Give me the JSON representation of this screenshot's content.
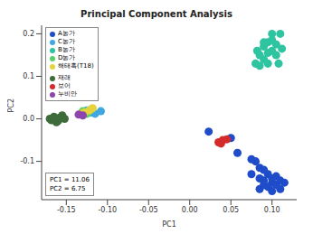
{
  "chart_data": {
    "type": "scatter",
    "title": "Principal Component Analysis",
    "x_label": "PC1",
    "y_label": "PC2",
    "xlim": [
      -0.18,
      0.13
    ],
    "xticks": [
      {
        "value": -0.15,
        "label": "-0.15"
      },
      {
        "value": -0.1,
        "label": "-0.10"
      },
      {
        "value": -0.05,
        "label": "-0.05"
      },
      {
        "value": 0,
        "label": "0.00"
      },
      {
        "value": 0.05,
        "label": "0.05"
      },
      {
        "value": 0.1,
        "label": "0.10"
      }
    ],
    "ylim": [
      -0.19,
      0.22
    ],
    "yticks": [
      {
        "value": -0.1,
        "label": "-0.1"
      },
      {
        "value": 0,
        "label": "0.0"
      },
      {
        "value": 0.1,
        "label": "0.1"
      },
      {
        "value": 0.2,
        "label": "0.2"
      }
    ],
    "grid": false,
    "legend": "top-left",
    "marker": "circle",
    "annotations": [
      "PC1 = 11.06",
      "PC2 = 6.75"
    ],
    "series": [
      {
        "name": "A농가",
        "color": "#1f4cc9",
        "x": [
          0.08,
          0.085,
          0.09,
          0.095,
          0.085,
          0.09,
          0.1,
          0.105,
          0.095,
          0.11,
          0.1,
          0.085,
          0.105,
          0.11,
          0.09,
          0.075,
          0.115,
          0.1,
          0.023,
          0.05,
          0.058,
          0.075
        ],
        "values": [
          -0.1,
          -0.115,
          -0.12,
          -0.13,
          -0.14,
          -0.145,
          -0.15,
          -0.155,
          -0.16,
          -0.165,
          -0.17,
          -0.165,
          -0.135,
          -0.145,
          -0.155,
          -0.13,
          -0.15,
          -0.14,
          -0.03,
          -0.045,
          -0.08,
          -0.095
        ]
      },
      {
        "name": "C농가",
        "color": "#40a8e0",
        "x": [
          -0.108,
          -0.115,
          -0.12,
          -0.125
        ],
        "values": [
          0.018,
          0.012,
          0.015,
          0.02
        ]
      },
      {
        "name": "B농가",
        "color": "#2ec4a0",
        "x": [
          0.08,
          0.085,
          0.09,
          0.095,
          0.1,
          0.105,
          0.11,
          0.1,
          0.09,
          0.085,
          0.095,
          0.105,
          0.108,
          0.09,
          0.1,
          0.095,
          0.082,
          0.112
        ],
        "values": [
          0.13,
          0.15,
          0.17,
          0.18,
          0.185,
          0.175,
          0.2,
          0.16,
          0.14,
          0.125,
          0.155,
          0.15,
          0.13,
          0.18,
          0.2,
          0.13,
          0.16,
          0.165
        ]
      },
      {
        "name": "D농가",
        "color": "#55d16a",
        "x": [
          -0.125,
          -0.13,
          -0.12
        ],
        "values": [
          0.012,
          0.018,
          0.022
        ]
      },
      {
        "name": "해태흑(T18)",
        "color": "#e6d23a",
        "x": [
          -0.128,
          -0.122,
          -0.132,
          -0.118
        ],
        "values": [
          0.015,
          0.02,
          0.012,
          0.025
        ]
      },
      {
        "name": "재래",
        "color": "#3d6b3a",
        "x": [
          -0.17,
          -0.165,
          -0.16,
          -0.158,
          -0.155,
          -0.162,
          -0.168,
          -0.152
        ],
        "values": [
          0,
          0.005,
          -0.005,
          0.003,
          0.008,
          -0.008,
          -0.003,
          0
        ]
      },
      {
        "name": "보어",
        "color": "#d42a2a",
        "x": [
          0.035,
          0.04,
          0.045,
          0.038
        ],
        "values": [
          -0.055,
          -0.05,
          -0.048,
          -0.058
        ]
      },
      {
        "name": "누비안",
        "color": "#8e44ad",
        "x": [
          -0.135,
          -0.13
        ],
        "values": [
          0.01,
          0.008
        ]
      }
    ]
  }
}
